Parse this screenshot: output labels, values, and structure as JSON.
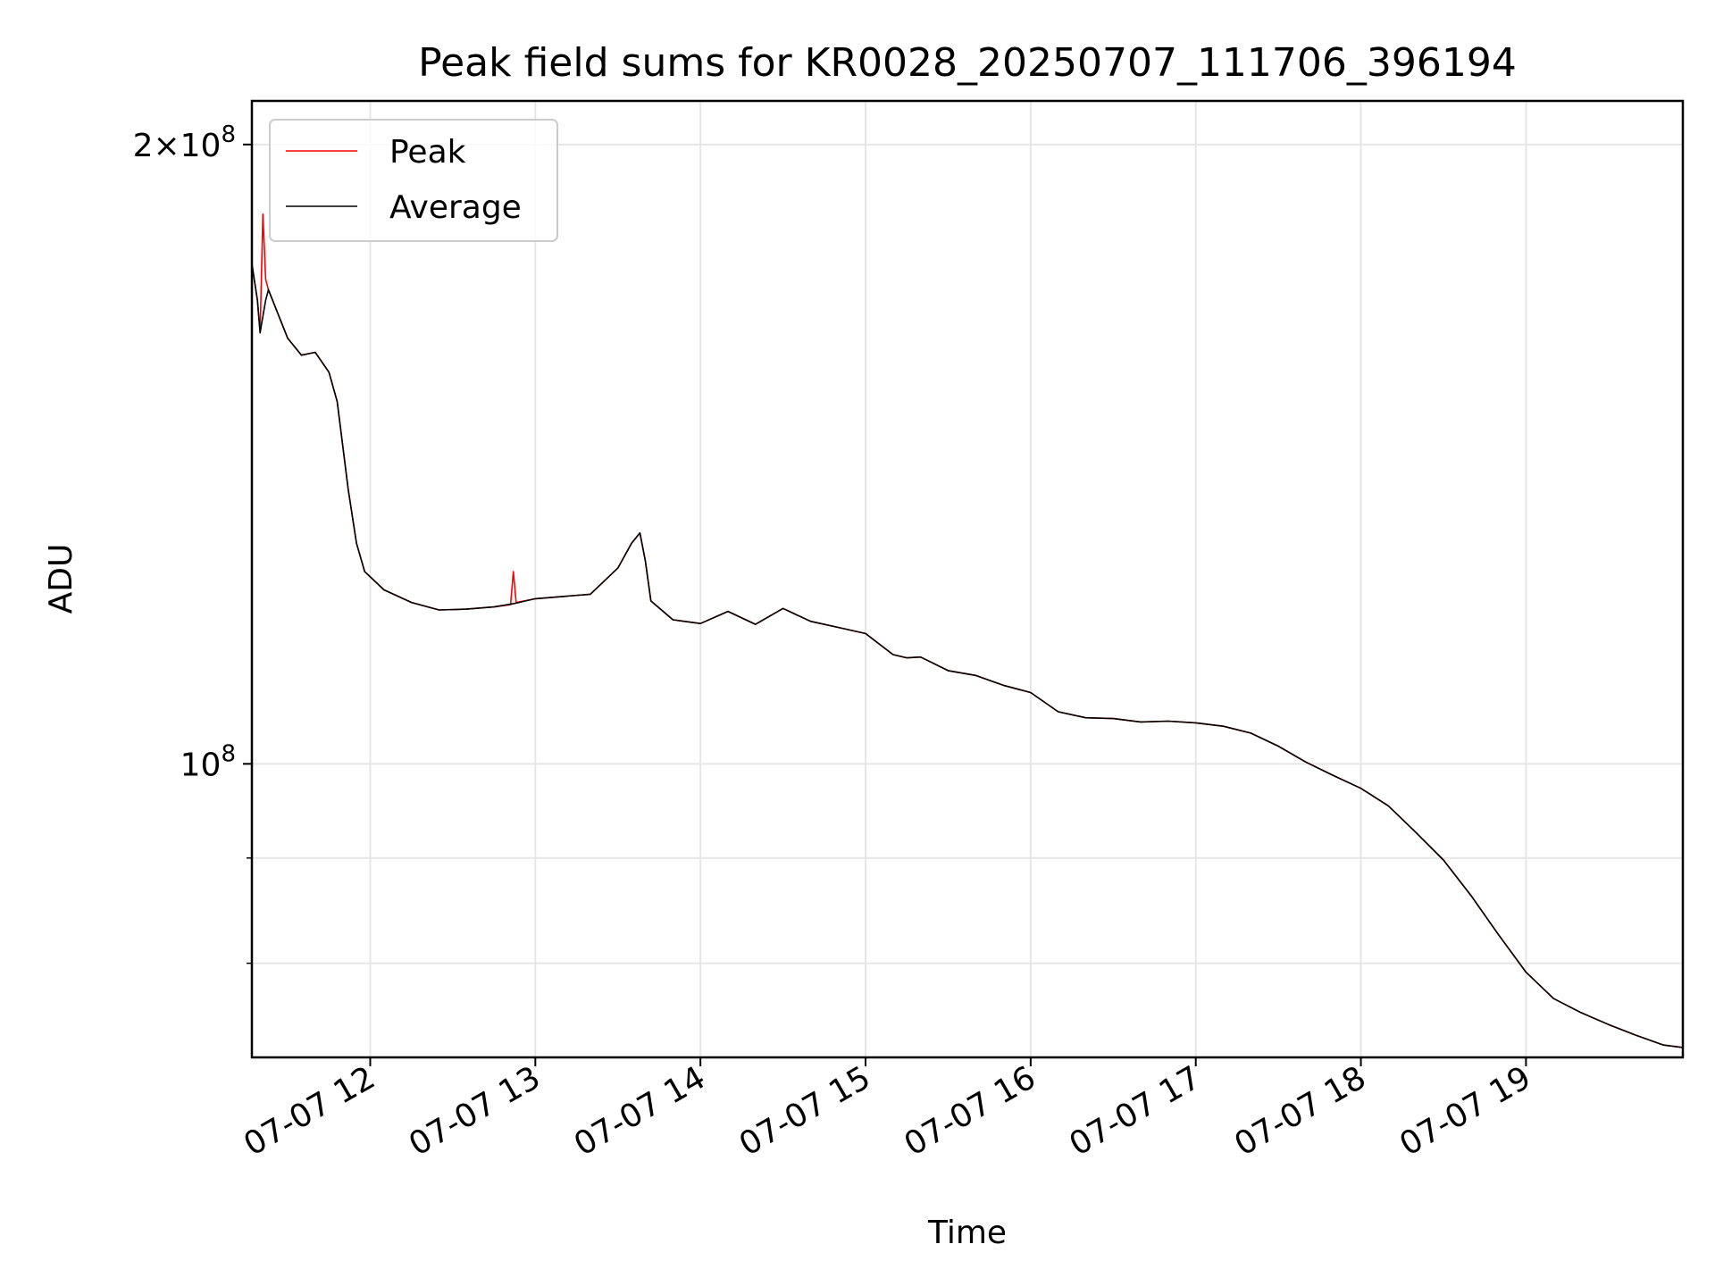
{
  "chart_data": {
    "type": "line",
    "title": "Peak field sums for KR0028_20250707_111706_396194",
    "xlabel": "Time",
    "ylabel": "ADU",
    "y_scale": "log",
    "ylim": [
      72000000,
      210000000
    ],
    "xlim": [
      "2025-07-07 11:17",
      "2025-07-07 19:57"
    ],
    "grid": true,
    "legend": {
      "placement": "top-left",
      "entries": [
        "Peak",
        "Average"
      ]
    },
    "x_ticks": [
      {
        "time": "2025-07-07 12:00",
        "label": "07-07 12"
      },
      {
        "time": "2025-07-07 13:00",
        "label": "07-07 13"
      },
      {
        "time": "2025-07-07 14:00",
        "label": "07-07 14"
      },
      {
        "time": "2025-07-07 15:00",
        "label": "07-07 15"
      },
      {
        "time": "2025-07-07 16:00",
        "label": "07-07 16"
      },
      {
        "time": "2025-07-07 17:00",
        "label": "07-07 17"
      },
      {
        "time": "2025-07-07 18:00",
        "label": "07-07 18"
      },
      {
        "time": "2025-07-07 19:00",
        "label": "07-07 19"
      }
    ],
    "y_ticks": [
      {
        "value": 200000000,
        "mantissa": "2×10",
        "exp": "8"
      },
      {
        "value": 100000000,
        "mantissa": "10",
        "exp": "8"
      }
    ],
    "y_minor_ticks": [
      90000000,
      80000000
    ],
    "series": [
      {
        "name": "Peak",
        "color": "#ff0000",
        "points": [
          [
            "2025-07-07 11:17",
            175000000
          ],
          [
            "2025-07-07 11:19",
            168000000
          ],
          [
            "2025-07-07 11:20",
            162000000
          ],
          [
            "2025-07-07 11:21",
            185000000
          ],
          [
            "2025-07-07 11:22",
            172000000
          ],
          [
            "2025-07-07 11:23",
            170000000
          ],
          [
            "2025-07-07 11:30",
            161000000
          ],
          [
            "2025-07-07 11:35",
            158000000
          ],
          [
            "2025-07-07 11:40",
            158500000
          ],
          [
            "2025-07-07 11:45",
            155000000
          ],
          [
            "2025-07-07 11:48",
            150000000
          ],
          [
            "2025-07-07 11:52",
            136000000
          ],
          [
            "2025-07-07 11:55",
            128000000
          ],
          [
            "2025-07-07 11:58",
            124000000
          ],
          [
            "2025-07-07 12:05",
            121500000
          ],
          [
            "2025-07-07 12:15",
            119800000
          ],
          [
            "2025-07-07 12:25",
            118800000
          ],
          [
            "2025-07-07 12:35",
            118900000
          ],
          [
            "2025-07-07 12:45",
            119200000
          ],
          [
            "2025-07-07 12:51",
            119500000
          ],
          [
            "2025-07-07 12:52",
            124000000
          ],
          [
            "2025-07-07 12:53",
            119800000
          ],
          [
            "2025-07-07 13:00",
            120300000
          ],
          [
            "2025-07-07 13:10",
            120600000
          ],
          [
            "2025-07-07 13:20",
            120900000
          ],
          [
            "2025-07-07 13:30",
            124500000
          ],
          [
            "2025-07-07 13:35",
            128000000
          ],
          [
            "2025-07-07 13:38",
            129500000
          ],
          [
            "2025-07-07 13:40",
            125500000
          ],
          [
            "2025-07-07 13:42",
            120000000
          ],
          [
            "2025-07-07 13:50",
            117500000
          ],
          [
            "2025-07-07 14:00",
            117000000
          ],
          [
            "2025-07-07 14:10",
            118600000
          ],
          [
            "2025-07-07 14:20",
            116900000
          ],
          [
            "2025-07-07 14:30",
            119000000
          ],
          [
            "2025-07-07 14:40",
            117300000
          ],
          [
            "2025-07-07 14:50",
            116500000
          ],
          [
            "2025-07-07 15:00",
            115700000
          ],
          [
            "2025-07-07 15:10",
            113000000
          ],
          [
            "2025-07-07 15:15",
            112600000
          ],
          [
            "2025-07-07 15:20",
            112700000
          ],
          [
            "2025-07-07 15:30",
            111000000
          ],
          [
            "2025-07-07 15:40",
            110400000
          ],
          [
            "2025-07-07 15:50",
            109200000
          ],
          [
            "2025-07-07 16:00",
            108300000
          ],
          [
            "2025-07-07 16:10",
            106000000
          ],
          [
            "2025-07-07 16:20",
            105300000
          ],
          [
            "2025-07-07 16:30",
            105200000
          ],
          [
            "2025-07-07 16:40",
            104800000
          ],
          [
            "2025-07-07 16:50",
            104900000
          ],
          [
            "2025-07-07 17:00",
            104700000
          ],
          [
            "2025-07-07 17:10",
            104300000
          ],
          [
            "2025-07-07 17:20",
            103500000
          ],
          [
            "2025-07-07 17:30",
            102000000
          ],
          [
            "2025-07-07 17:40",
            100200000
          ],
          [
            "2025-07-07 17:50",
            98700000
          ],
          [
            "2025-07-07 18:00",
            97300000
          ],
          [
            "2025-07-07 18:10",
            95400000
          ],
          [
            "2025-07-07 18:20",
            92600000
          ],
          [
            "2025-07-07 18:30",
            89800000
          ],
          [
            "2025-07-07 18:40",
            86300000
          ],
          [
            "2025-07-07 18:50",
            82600000
          ],
          [
            "2025-07-07 19:00",
            79200000
          ],
          [
            "2025-07-07 19:10",
            76900000
          ],
          [
            "2025-07-07 19:20",
            75700000
          ],
          [
            "2025-07-07 19:30",
            74700000
          ],
          [
            "2025-07-07 19:40",
            73800000
          ],
          [
            "2025-07-07 19:50",
            73000000
          ],
          [
            "2025-07-07 19:57",
            72800000
          ]
        ]
      },
      {
        "name": "Average",
        "color": "#000000",
        "points": [
          [
            "2025-07-07 11:17",
            175000000
          ],
          [
            "2025-07-07 11:19",
            168000000
          ],
          [
            "2025-07-07 11:20",
            162000000
          ],
          [
            "2025-07-07 11:22",
            168000000
          ],
          [
            "2025-07-07 11:23",
            170000000
          ],
          [
            "2025-07-07 11:30",
            161000000
          ],
          [
            "2025-07-07 11:35",
            158000000
          ],
          [
            "2025-07-07 11:40",
            158500000
          ],
          [
            "2025-07-07 11:45",
            155000000
          ],
          [
            "2025-07-07 11:48",
            150000000
          ],
          [
            "2025-07-07 11:52",
            136000000
          ],
          [
            "2025-07-07 11:55",
            128000000
          ],
          [
            "2025-07-07 11:58",
            124000000
          ],
          [
            "2025-07-07 12:05",
            121500000
          ],
          [
            "2025-07-07 12:15",
            119800000
          ],
          [
            "2025-07-07 12:25",
            118800000
          ],
          [
            "2025-07-07 12:35",
            118900000
          ],
          [
            "2025-07-07 12:45",
            119200000
          ],
          [
            "2025-07-07 12:53",
            119700000
          ],
          [
            "2025-07-07 13:00",
            120300000
          ],
          [
            "2025-07-07 13:10",
            120600000
          ],
          [
            "2025-07-07 13:20",
            120900000
          ],
          [
            "2025-07-07 13:30",
            124500000
          ],
          [
            "2025-07-07 13:35",
            128000000
          ],
          [
            "2025-07-07 13:38",
            129500000
          ],
          [
            "2025-07-07 13:40",
            125500000
          ],
          [
            "2025-07-07 13:42",
            120000000
          ],
          [
            "2025-07-07 13:50",
            117500000
          ],
          [
            "2025-07-07 14:00",
            117000000
          ],
          [
            "2025-07-07 14:10",
            118600000
          ],
          [
            "2025-07-07 14:20",
            116900000
          ],
          [
            "2025-07-07 14:30",
            119000000
          ],
          [
            "2025-07-07 14:40",
            117300000
          ],
          [
            "2025-07-07 14:50",
            116500000
          ],
          [
            "2025-07-07 15:00",
            115700000
          ],
          [
            "2025-07-07 15:10",
            113000000
          ],
          [
            "2025-07-07 15:15",
            112600000
          ],
          [
            "2025-07-07 15:20",
            112700000
          ],
          [
            "2025-07-07 15:30",
            111000000
          ],
          [
            "2025-07-07 15:40",
            110400000
          ],
          [
            "2025-07-07 15:50",
            109200000
          ],
          [
            "2025-07-07 16:00",
            108300000
          ],
          [
            "2025-07-07 16:10",
            106000000
          ],
          [
            "2025-07-07 16:20",
            105300000
          ],
          [
            "2025-07-07 16:30",
            105200000
          ],
          [
            "2025-07-07 16:40",
            104800000
          ],
          [
            "2025-07-07 16:50",
            104900000
          ],
          [
            "2025-07-07 17:00",
            104700000
          ],
          [
            "2025-07-07 17:10",
            104300000
          ],
          [
            "2025-07-07 17:20",
            103500000
          ],
          [
            "2025-07-07 17:30",
            102000000
          ],
          [
            "2025-07-07 17:40",
            100200000
          ],
          [
            "2025-07-07 17:50",
            98700000
          ],
          [
            "2025-07-07 18:00",
            97300000
          ],
          [
            "2025-07-07 18:10",
            95400000
          ],
          [
            "2025-07-07 18:20",
            92600000
          ],
          [
            "2025-07-07 18:30",
            89800000
          ],
          [
            "2025-07-07 18:40",
            86300000
          ],
          [
            "2025-07-07 18:50",
            82600000
          ],
          [
            "2025-07-07 19:00",
            79200000
          ],
          [
            "2025-07-07 19:10",
            76900000
          ],
          [
            "2025-07-07 19:20",
            75700000
          ],
          [
            "2025-07-07 19:30",
            74700000
          ],
          [
            "2025-07-07 19:40",
            73800000
          ],
          [
            "2025-07-07 19:50",
            73000000
          ],
          [
            "2025-07-07 19:57",
            72800000
          ]
        ]
      }
    ]
  }
}
